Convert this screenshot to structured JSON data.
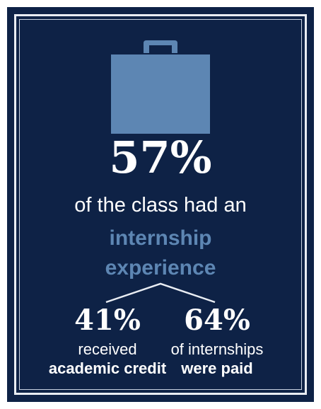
{
  "colors": {
    "background": "#0e2246",
    "frame": "#e9edf3",
    "accent": "#5d86b3",
    "text": "#ffffff"
  },
  "icon": "briefcase-icon",
  "main_stat": {
    "value": "57%",
    "text": "of the class had an",
    "highlight_line1": "internship",
    "highlight_line2": "experience"
  },
  "sub_stats": {
    "left": {
      "value": "41%",
      "line1": "received",
      "line2": "academic credit"
    },
    "right": {
      "value": "64%",
      "line1": "of internships",
      "line2": "were paid"
    }
  }
}
